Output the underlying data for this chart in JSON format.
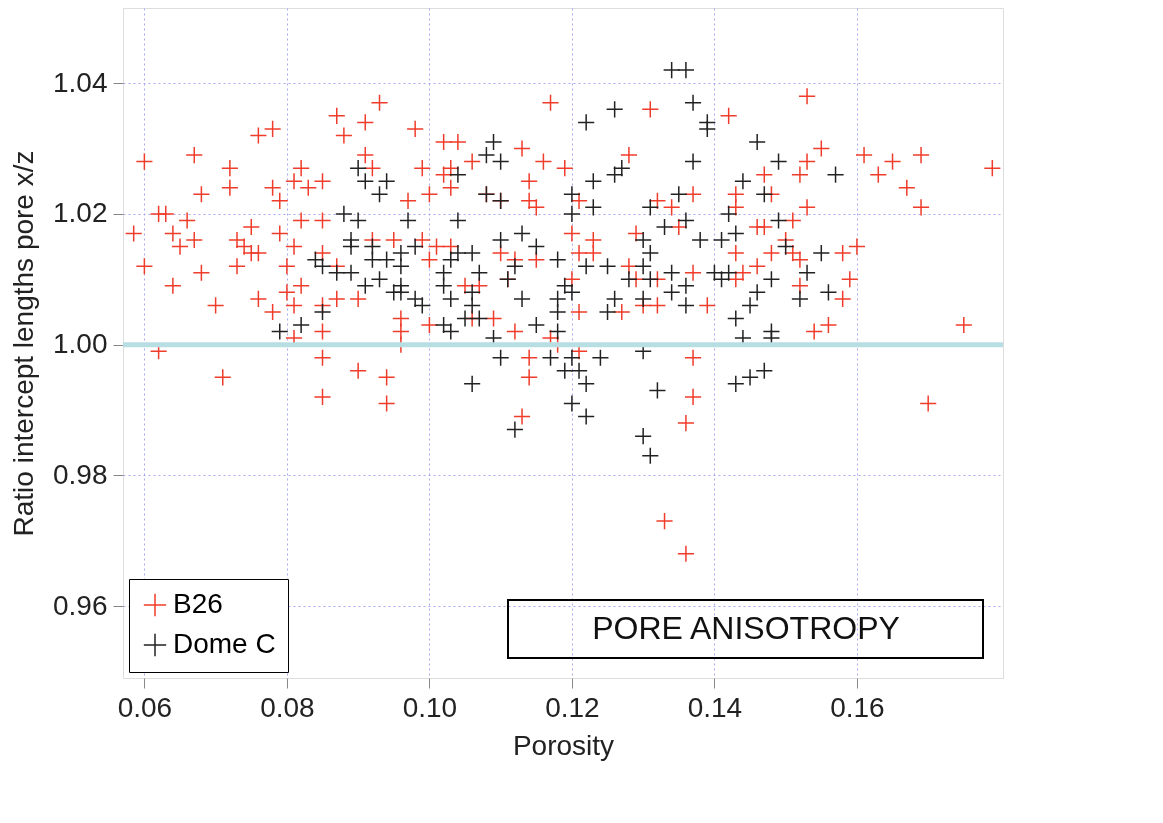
{
  "chart_data": {
    "type": "scatter",
    "xlabel": "Porosity",
    "ylabel": "Ratio intercept lengths pore x/z",
    "xlim": [
      0.057,
      0.1805
    ],
    "ylim": [
      0.949,
      1.0515
    ],
    "xticks": [
      {
        "value": 0.06,
        "label": "0.06"
      },
      {
        "value": 0.08,
        "label": "0.08"
      },
      {
        "value": 0.1,
        "label": "0.10"
      },
      {
        "value": 0.12,
        "label": "0.12"
      },
      {
        "value": 0.14,
        "label": "0.14"
      },
      {
        "value": 0.16,
        "label": "0.16"
      }
    ],
    "yticks": [
      {
        "value": 0.96,
        "label": "0.96"
      },
      {
        "value": 0.98,
        "label": "0.98"
      },
      {
        "value": 1.0,
        "label": "1.00"
      },
      {
        "value": 1.02,
        "label": "1.02"
      },
      {
        "value": 1.04,
        "label": "1.04"
      }
    ],
    "grid": true,
    "legend": "bottom left",
    "marker": "cross",
    "annotations": [
      "PORE ANISOTROPY"
    ],
    "ref_lines": [
      {
        "axis": "y",
        "value": 1.0,
        "color": "#b7dfe3"
      }
    ],
    "series": [
      {
        "name": "B26",
        "color": "#f03c2a",
        "x": [
          0.0585,
          0.06,
          0.06,
          0.062,
          0.063,
          0.062,
          0.064,
          0.064,
          0.065,
          0.066,
          0.067,
          0.067,
          0.068,
          0.068,
          0.07,
          0.071,
          0.072,
          0.072,
          0.073,
          0.073,
          0.074,
          0.075,
          0.075,
          0.076,
          0.076,
          0.078,
          0.076,
          0.078,
          0.078,
          0.079,
          0.079,
          0.08,
          0.08,
          0.081,
          0.081,
          0.081,
          0.081,
          0.082,
          0.082,
          0.082,
          0.083,
          0.085,
          0.085,
          0.085,
          0.085,
          0.085,
          0.085,
          0.085,
          0.087,
          0.087,
          0.087,
          0.088,
          0.09,
          0.09,
          0.091,
          0.091,
          0.092,
          0.092,
          0.093,
          0.094,
          0.094,
          0.095,
          0.096,
          0.096,
          0.096,
          0.097,
          0.098,
          0.099,
          0.099,
          0.1,
          0.1,
          0.1,
          0.101,
          0.102,
          0.102,
          0.103,
          0.103,
          0.103,
          0.104,
          0.105,
          0.106,
          0.106,
          0.107,
          0.108,
          0.109,
          0.11,
          0.11,
          0.111,
          0.112,
          0.112,
          0.113,
          0.113,
          0.114,
          0.114,
          0.114,
          0.114,
          0.115,
          0.115,
          0.116,
          0.117,
          0.117,
          0.118,
          0.119,
          0.12,
          0.12,
          0.121,
          0.121,
          0.121,
          0.121,
          0.123,
          0.123,
          0.127,
          0.128,
          0.128,
          0.129,
          0.129,
          0.13,
          0.131,
          0.132,
          0.132,
          0.132,
          0.133,
          0.134,
          0.135,
          0.136,
          0.136,
          0.137,
          0.137,
          0.137,
          0.137,
          0.139,
          0.142,
          0.143,
          0.143,
          0.143,
          0.143,
          0.144,
          0.146,
          0.146,
          0.147,
          0.147,
          0.148,
          0.148,
          0.15,
          0.151,
          0.151,
          0.152,
          0.152,
          0.152,
          0.153,
          0.153,
          0.153,
          0.154,
          0.155,
          0.156,
          0.158,
          0.158,
          0.159,
          0.16,
          0.161,
          0.163,
          0.165,
          0.167,
          0.169,
          0.169,
          0.17,
          0.175,
          0.179
        ],
        "values": [
          1.017,
          1.028,
          1.012,
          1.02,
          1.02,
          0.999,
          1.009,
          1.017,
          1.015,
          1.019,
          1.016,
          1.029,
          1.023,
          1.011,
          1.006,
          0.995,
          1.027,
          1.024,
          1.012,
          1.016,
          1.015,
          1.018,
          1.014,
          1.014,
          1.032,
          1.033,
          1.007,
          1.005,
          1.024,
          1.022,
          1.017,
          1.012,
          1.008,
          1.025,
          1.015,
          1.006,
          1.001,
          1.027,
          1.019,
          1.009,
          1.024,
          1.025,
          1.019,
          1.014,
          1.006,
          1.002,
          0.998,
          0.992,
          1.035,
          1.012,
          1.007,
          1.032,
          1.007,
          0.996,
          1.034,
          1.029,
          1.027,
          1.016,
          1.037,
          0.995,
          0.991,
          1.016,
          1.004,
          1.002,
          1.0,
          1.022,
          1.033,
          1.027,
          1.016,
          1.023,
          1.013,
          1.003,
          1.015,
          1.031,
          1.026,
          1.027,
          1.024,
          1.015,
          1.031,
          1.009,
          1.028,
          1.004,
          1.009,
          1.023,
          1.004,
          1.022,
          1.014,
          1.01,
          1.013,
          1.002,
          1.03,
          0.989,
          1.025,
          1.022,
          0.998,
          0.995,
          1.021,
          1.013,
          1.028,
          1.037,
          1.001,
          1.0,
          1.027,
          1.017,
          1.01,
          1.022,
          1.014,
          1.005,
          0.999,
          1.016,
          1.014,
          1.005,
          1.029,
          1.012,
          1.017,
          1.01,
          1.006,
          1.036,
          1.022,
          1.01,
          1.006,
          0.973,
          1.021,
          1.018,
          0.988,
          0.968,
          1.023,
          1.011,
          0.998,
          0.992,
          1.006,
          1.035,
          1.023,
          1.021,
          1.014,
          1.01,
          1.011,
          1.012,
          1.018,
          1.026,
          1.018,
          1.023,
          1.014,
          1.016,
          1.019,
          1.014,
          1.026,
          1.013,
          1.009,
          1.038,
          1.028,
          1.021,
          1.002,
          1.03,
          1.003,
          1.014,
          1.007,
          1.01,
          1.015,
          1.029,
          1.026,
          1.028,
          1.024,
          1.029,
          1.021,
          0.991,
          1.003,
          1.027
        ]
      },
      {
        "name": "Dome C",
        "color": "#222222",
        "x": [
          0.079,
          0.082,
          0.084,
          0.085,
          0.085,
          0.087,
          0.088,
          0.089,
          0.089,
          0.089,
          0.09,
          0.09,
          0.091,
          0.091,
          0.092,
          0.092,
          0.093,
          0.093,
          0.094,
          0.094,
          0.095,
          0.096,
          0.096,
          0.096,
          0.096,
          0.097,
          0.098,
          0.098,
          0.099,
          0.102,
          0.102,
          0.102,
          0.103,
          0.103,
          0.103,
          0.104,
          0.104,
          0.104,
          0.105,
          0.106,
          0.106,
          0.106,
          0.106,
          0.107,
          0.107,
          0.108,
          0.108,
          0.109,
          0.109,
          0.11,
          0.11,
          0.11,
          0.11,
          0.111,
          0.112,
          0.112,
          0.113,
          0.113,
          0.115,
          0.115,
          0.117,
          0.118,
          0.118,
          0.118,
          0.118,
          0.119,
          0.119,
          0.12,
          0.12,
          0.12,
          0.12,
          0.12,
          0.121,
          0.122,
          0.122,
          0.122,
          0.122,
          0.123,
          0.123,
          0.124,
          0.125,
          0.125,
          0.126,
          0.126,
          0.126,
          0.127,
          0.128,
          0.13,
          0.13,
          0.13,
          0.13,
          0.13,
          0.131,
          0.131,
          0.131,
          0.131,
          0.132,
          0.133,
          0.134,
          0.134,
          0.134,
          0.135,
          0.136,
          0.136,
          0.136,
          0.136,
          0.137,
          0.137,
          0.138,
          0.139,
          0.139,
          0.14,
          0.141,
          0.141,
          0.142,
          0.142,
          0.143,
          0.143,
          0.143,
          0.144,
          0.144,
          0.145,
          0.145,
          0.146,
          0.146,
          0.147,
          0.147,
          0.148,
          0.148,
          0.148,
          0.149,
          0.149,
          0.15,
          0.152,
          0.153,
          0.155,
          0.156,
          0.157
        ],
        "values": [
          1.002,
          1.003,
          1.013,
          1.012,
          1.005,
          1.011,
          1.02,
          1.016,
          1.015,
          1.011,
          1.027,
          1.019,
          1.025,
          1.009,
          1.015,
          1.013,
          1.023,
          1.01,
          1.025,
          1.013,
          1.008,
          1.014,
          1.012,
          1.009,
          1.008,
          1.019,
          1.015,
          1.007,
          1.006,
          1.011,
          1.009,
          1.003,
          1.013,
          1.007,
          1.002,
          1.026,
          1.019,
          1.014,
          1.004,
          1.014,
          1.008,
          1.006,
          0.994,
          1.011,
          1.004,
          1.029,
          1.023,
          1.031,
          1.001,
          1.028,
          1.022,
          1.016,
          0.998,
          1.01,
          1.012,
          0.987,
          1.017,
          1.007,
          1.015,
          1.003,
          0.998,
          1.013,
          1.007,
          1.005,
          1.002,
          1.009,
          0.996,
          1.023,
          1.02,
          1.008,
          0.998,
          0.991,
          0.996,
          1.034,
          1.012,
          0.994,
          0.989,
          1.025,
          1.021,
          0.998,
          1.012,
          1.005,
          1.036,
          1.026,
          1.007,
          1.027,
          1.01,
          1.016,
          1.012,
          1.007,
          0.999,
          0.986,
          1.021,
          1.014,
          1.01,
          0.983,
          0.993,
          1.018,
          1.042,
          1.011,
          1.008,
          1.023,
          1.042,
          1.019,
          1.009,
          1.006,
          1.037,
          1.028,
          1.016,
          1.033,
          1.034,
          1.011,
          1.016,
          1.01,
          1.02,
          1.011,
          1.017,
          1.004,
          0.994,
          1.025,
          1.001,
          1.006,
          0.995,
          1.031,
          1.008,
          1.023,
          0.996,
          1.01,
          1.002,
          1.001,
          1.028,
          1.019,
          1.015,
          1.007,
          1.011,
          1.014,
          1.008,
          1.026
        ]
      }
    ]
  }
}
